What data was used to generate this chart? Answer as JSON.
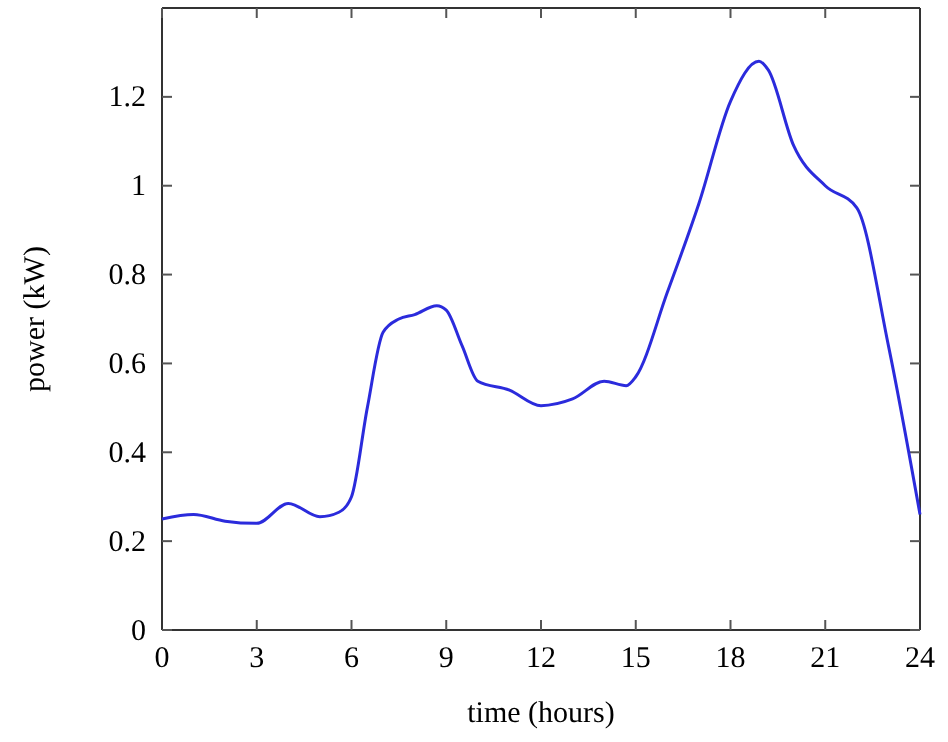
{
  "chart_data": {
    "type": "line",
    "xlabel": "time (hours)",
    "ylabel": "power (kW)",
    "xlim": [
      0,
      24
    ],
    "ylim": [
      0,
      1.4
    ],
    "xticks": [
      0,
      3,
      6,
      9,
      12,
      15,
      18,
      21,
      24
    ],
    "yticks": [
      0,
      0.2,
      0.4,
      0.6,
      0.8,
      1,
      1.2
    ],
    "grid": false,
    "marker": "none",
    "line_style": "solid",
    "series": [
      {
        "color": "#2b2bdc",
        "x": [
          0,
          1,
          2,
          3,
          4,
          5,
          5.6,
          6,
          6.5,
          7,
          7.5,
          8,
          8.7,
          9,
          9.5,
          10,
          11,
          12,
          13,
          14,
          14.7,
          15,
          16,
          17,
          18,
          18.9,
          19.2,
          20,
          21,
          22,
          23,
          24
        ],
        "values": [
          0.25,
          0.26,
          0.245,
          0.24,
          0.285,
          0.255,
          0.265,
          0.3,
          0.5,
          0.67,
          0.7,
          0.71,
          0.73,
          0.72,
          0.64,
          0.56,
          0.54,
          0.505,
          0.52,
          0.56,
          0.55,
          0.57,
          0.76,
          0.96,
          1.19,
          1.28,
          1.26,
          1.09,
          1.0,
          0.95,
          0.64,
          0.26
        ]
      }
    ]
  }
}
